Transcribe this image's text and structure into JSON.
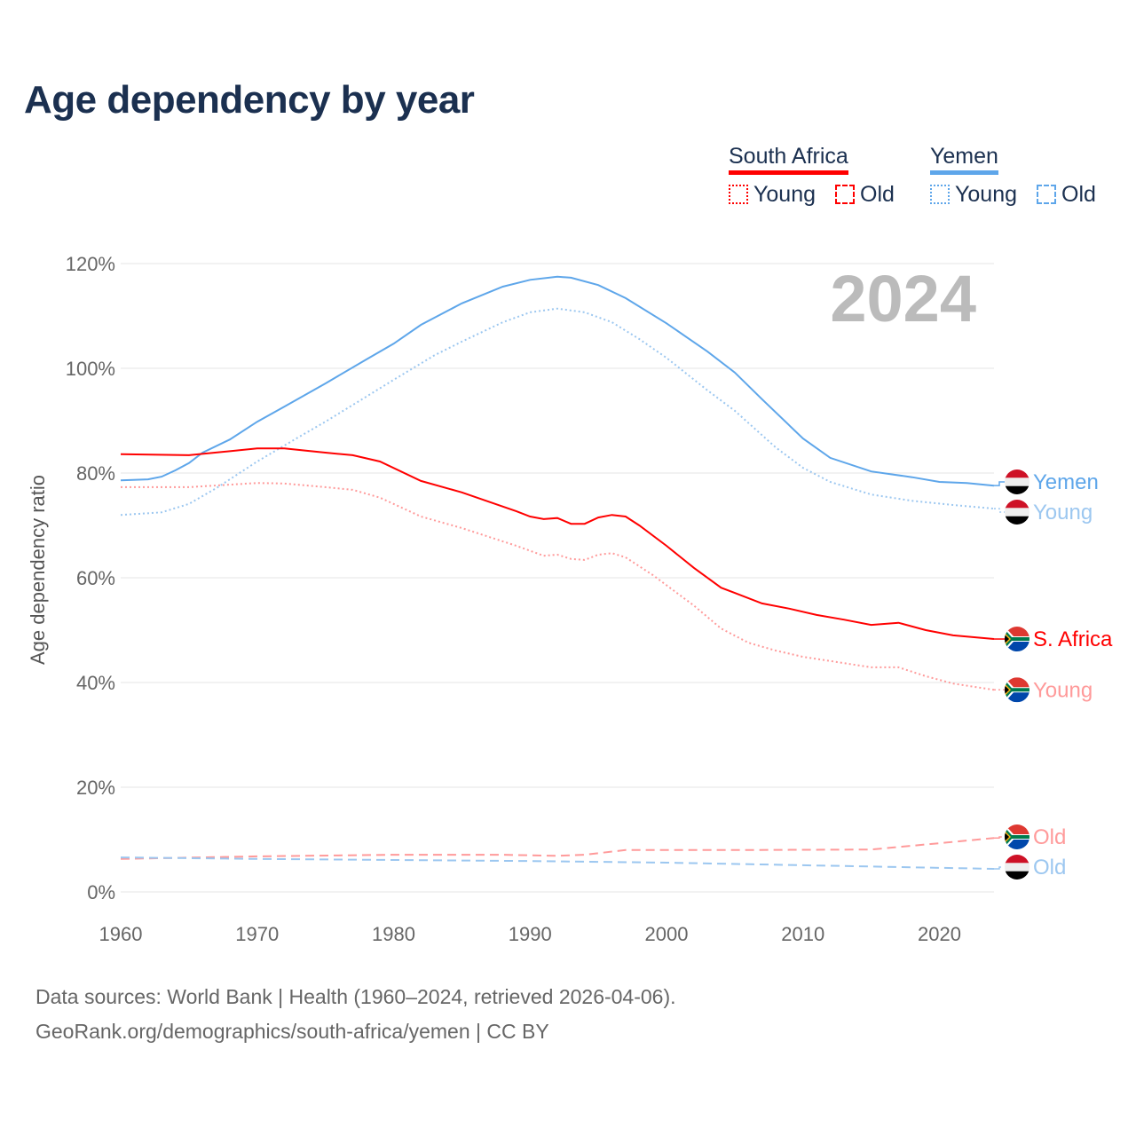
{
  "title": "Age dependency by year",
  "legend": {
    "groups": [
      {
        "name": "South Africa",
        "color": "#ff0000",
        "items": [
          "Young",
          "Old"
        ]
      },
      {
        "name": "Yemen",
        "color": "#5ea6ea",
        "items": [
          "Young",
          "Old"
        ]
      }
    ]
  },
  "year_watermark": "2024",
  "source_line1": "Data sources: World Bank | Health (1960–2024, retrieved 2026-04-06).",
  "source_line2": "GeoRank.org/demographics/south-africa/yemen | CC BY",
  "chart_data": {
    "type": "line",
    "title": "Age dependency by year",
    "xlabel": "",
    "ylabel": "Age dependency ratio",
    "xlim": [
      1960,
      2024
    ],
    "ylim": [
      0,
      120
    ],
    "xticks": [
      "1960",
      "1970",
      "1980",
      "1990",
      "2000",
      "2010",
      "2020"
    ],
    "yticks": [
      "0%",
      "20%",
      "40%",
      "60%",
      "80%",
      "100%",
      "120%"
    ],
    "grid": true,
    "series": [
      {
        "name": "Yemen",
        "end_label": "Yemen",
        "color": "#5ea6ea",
        "style": "solid",
        "flag": "yemen",
        "points": [
          [
            1960,
            78.6
          ],
          [
            1962,
            78.8
          ],
          [
            1963,
            79.3
          ],
          [
            1964,
            80.5
          ],
          [
            1965,
            81.9
          ],
          [
            1966,
            83.9
          ],
          [
            1968,
            86.4
          ],
          [
            1970,
            89.8
          ],
          [
            1972,
            92.7
          ],
          [
            1975,
            97.1
          ],
          [
            1978,
            101.7
          ],
          [
            1980,
            104.7
          ],
          [
            1982,
            108.3
          ],
          [
            1985,
            112.4
          ],
          [
            1988,
            115.6
          ],
          [
            1990,
            116.9
          ],
          [
            1992,
            117.5
          ],
          [
            1993,
            117.3
          ],
          [
            1995,
            115.9
          ],
          [
            1997,
            113.4
          ],
          [
            2000,
            108.6
          ],
          [
            2003,
            103.2
          ],
          [
            2005,
            99.2
          ],
          [
            2007,
            94.1
          ],
          [
            2010,
            86.6
          ],
          [
            2012,
            82.9
          ],
          [
            2015,
            80.3
          ],
          [
            2018,
            79.2
          ],
          [
            2020,
            78.3
          ],
          [
            2022,
            78.1
          ],
          [
            2024,
            77.6
          ]
        ]
      },
      {
        "name": "Yemen Young",
        "end_label": "Young",
        "color": "#9cc7f0",
        "style": "dotted",
        "flag": "yemen",
        "points": [
          [
            1960,
            72.0
          ],
          [
            1963,
            72.5
          ],
          [
            1965,
            74.1
          ],
          [
            1967,
            77.1
          ],
          [
            1970,
            82.2
          ],
          [
            1973,
            86.8
          ],
          [
            1975,
            89.8
          ],
          [
            1978,
            94.6
          ],
          [
            1980,
            97.8
          ],
          [
            1983,
            102.5
          ],
          [
            1985,
            105.1
          ],
          [
            1988,
            108.8
          ],
          [
            1990,
            110.7
          ],
          [
            1992,
            111.4
          ],
          [
            1994,
            110.7
          ],
          [
            1996,
            108.8
          ],
          [
            1998,
            105.6
          ],
          [
            2000,
            102.0
          ],
          [
            2003,
            95.8
          ],
          [
            2005,
            91.9
          ],
          [
            2008,
            84.9
          ],
          [
            2010,
            81.0
          ],
          [
            2012,
            78.3
          ],
          [
            2015,
            75.9
          ],
          [
            2018,
            74.7
          ],
          [
            2021,
            73.9
          ],
          [
            2024,
            73.2
          ]
        ]
      },
      {
        "name": "South Africa",
        "end_label": "S. Africa",
        "color": "#ff0000",
        "style": "solid",
        "flag": "south-africa",
        "points": [
          [
            1960,
            83.6
          ],
          [
            1965,
            83.4
          ],
          [
            1970,
            84.7
          ],
          [
            1972,
            84.7
          ],
          [
            1975,
            83.9
          ],
          [
            1977,
            83.4
          ],
          [
            1979,
            82.2
          ],
          [
            1982,
            78.5
          ],
          [
            1985,
            76.3
          ],
          [
            1989,
            72.7
          ],
          [
            1990,
            71.7
          ],
          [
            1991,
            71.2
          ],
          [
            1992,
            71.4
          ],
          [
            1993,
            70.3
          ],
          [
            1994,
            70.3
          ],
          [
            1995,
            71.5
          ],
          [
            1996,
            72.0
          ],
          [
            1997,
            71.7
          ],
          [
            1998,
            70.0
          ],
          [
            2000,
            66.1
          ],
          [
            2002,
            61.9
          ],
          [
            2004,
            58.1
          ],
          [
            2005,
            57.1
          ],
          [
            2007,
            55.1
          ],
          [
            2009,
            54.1
          ],
          [
            2011,
            52.9
          ],
          [
            2013,
            52.0
          ],
          [
            2015,
            51.0
          ],
          [
            2017,
            51.4
          ],
          [
            2019,
            50.0
          ],
          [
            2021,
            49.0
          ],
          [
            2024,
            48.3
          ]
        ]
      },
      {
        "name": "South Africa Young",
        "end_label": "Young",
        "color": "#ff9a9a",
        "style": "dotted",
        "flag": "south-africa",
        "points": [
          [
            1960,
            77.3
          ],
          [
            1965,
            77.3
          ],
          [
            1970,
            78.1
          ],
          [
            1972,
            78.0
          ],
          [
            1975,
            77.3
          ],
          [
            1977,
            76.8
          ],
          [
            1979,
            75.3
          ],
          [
            1982,
            71.7
          ],
          [
            1985,
            69.5
          ],
          [
            1989,
            66.1
          ],
          [
            1991,
            64.2
          ],
          [
            1992,
            64.4
          ],
          [
            1993,
            63.6
          ],
          [
            1994,
            63.4
          ],
          [
            1995,
            64.4
          ],
          [
            1996,
            64.7
          ],
          [
            1997,
            63.9
          ],
          [
            1999,
            60.5
          ],
          [
            2002,
            54.7
          ],
          [
            2004,
            50.3
          ],
          [
            2006,
            47.6
          ],
          [
            2008,
            46.1
          ],
          [
            2010,
            44.9
          ],
          [
            2012,
            44.1
          ],
          [
            2015,
            42.9
          ],
          [
            2017,
            42.9
          ],
          [
            2019,
            41.2
          ],
          [
            2021,
            39.8
          ],
          [
            2024,
            38.6
          ]
        ]
      },
      {
        "name": "South Africa Old",
        "end_label": "Old",
        "color": "#ff9a9a",
        "style": "dashed",
        "flag": "south-africa",
        "points": [
          [
            1960,
            6.3
          ],
          [
            1970,
            6.8
          ],
          [
            1980,
            7.1
          ],
          [
            1988,
            7.1
          ],
          [
            1992,
            6.9
          ],
          [
            1994,
            7.1
          ],
          [
            1997,
            8.0
          ],
          [
            2005,
            8.0
          ],
          [
            2015,
            8.1
          ],
          [
            2020,
            9.3
          ],
          [
            2024,
            10.3
          ]
        ]
      },
      {
        "name": "Yemen Old",
        "end_label": "Old",
        "color": "#9cc7f0",
        "style": "dashed",
        "flag": "yemen",
        "points": [
          [
            1960,
            6.6
          ],
          [
            1970,
            6.3
          ],
          [
            1990,
            5.9
          ],
          [
            2000,
            5.6
          ],
          [
            2010,
            5.1
          ],
          [
            2024,
            4.4
          ]
        ]
      }
    ]
  }
}
